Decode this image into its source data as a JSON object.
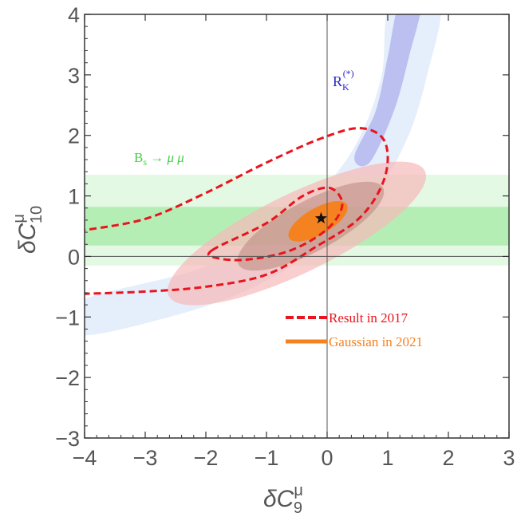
{
  "chart_data": {
    "type": "contour",
    "xlim": [
      -4,
      3
    ],
    "ylim": [
      -3,
      4
    ],
    "x_ticks": [
      "−4",
      "−3",
      "−2",
      "−1",
      "0",
      "1",
      "2",
      "3"
    ],
    "y_ticks": [
      "−3",
      "−2",
      "−1",
      "0",
      "1",
      "2",
      "3",
      "4"
    ],
    "xlabel": {
      "base": "δC",
      "sup": "μ",
      "sub": "9"
    },
    "ylabel": {
      "base": "δC",
      "sup": "μ",
      "sub": "10"
    },
    "best_fit": {
      "x": -0.1,
      "y": 0.63
    },
    "bands": {
      "bs_mumu": {
        "label": "B",
        "label_sub": "s",
        "label_tail": " → μ μ",
        "inner": [
          0.18,
          0.82
        ],
        "outer": [
          -0.15,
          1.35
        ],
        "color": "#7de07d"
      },
      "rk": {
        "label": "R",
        "label_sub": "K",
        "label_sup": "(*)",
        "color": "#8f8fe8"
      }
    },
    "legend": {
      "items": [
        {
          "name": "Result in 2017",
          "style": "dashed",
          "color": "#e8141e"
        },
        {
          "name": "Gaussian in 2021",
          "style": "solid",
          "color": "#f58220"
        }
      ]
    },
    "colors": {
      "pink_outer": "#f9c8c8",
      "pink_inner": "#c98a8a",
      "orange": "#f58220",
      "dashed": "#e8141e"
    }
  }
}
